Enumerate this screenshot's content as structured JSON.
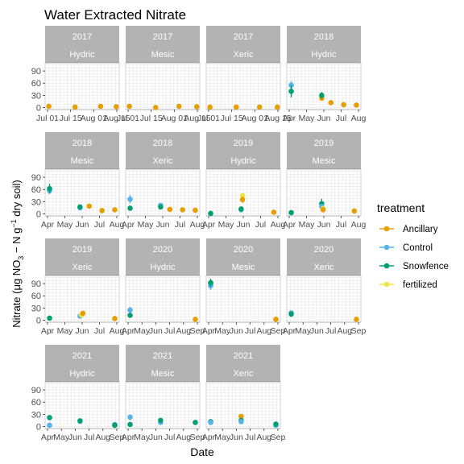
{
  "chart_data": {
    "type": "scatter",
    "title": "Water Extracted Nitrate",
    "xlabel": "Date",
    "ylabel_parts": [
      "Nitrate (μg NO",
      "3",
      " − N g",
      "−1",
      " dry soil)"
    ],
    "ylim": [
      -5,
      110
    ],
    "yticks": [
      "0",
      "30",
      "60",
      "90"
    ],
    "grid": true,
    "legend": {
      "title": "treatment",
      "position": "right",
      "entries": [
        {
          "label": "Ancillary",
          "color": "#E69F00"
        },
        {
          "label": "Control",
          "color": "#56B4E9"
        },
        {
          "label": "Snowfence",
          "color": "#009E73"
        },
        {
          "label": "fertilized",
          "color": "#F0E442"
        }
      ]
    },
    "panels": [
      {
        "year": "2017",
        "site": "Hydric",
        "xticks": [
          "Jul 01",
          "Jul 15",
          "Aug 01",
          "Aug 15"
        ],
        "points": [
          {
            "t": "Ancillary",
            "x": 0.03,
            "y": 3
          },
          {
            "t": "Ancillary",
            "x": 0.4,
            "y": 1
          },
          {
            "t": "Ancillary",
            "x": 0.76,
            "y": 3
          },
          {
            "t": "Ancillary",
            "x": 0.98,
            "y": 2
          }
        ]
      },
      {
        "year": "2017",
        "site": "Mesic",
        "xticks": [
          "Jul 01",
          "Jul 15",
          "Aug 01",
          "Aug 15"
        ],
        "points": [
          {
            "t": "Ancillary",
            "x": 0.03,
            "y": 3
          },
          {
            "t": "Ancillary",
            "x": 0.4,
            "y": 0
          },
          {
            "t": "Ancillary",
            "x": 0.73,
            "y": 3
          },
          {
            "t": "Ancillary",
            "x": 0.98,
            "y": 2
          }
        ]
      },
      {
        "year": "2017",
        "site": "Xeric",
        "xticks": [
          "Jul 01",
          "Jul 15",
          "Aug 01",
          "Aug 15"
        ],
        "points": [
          {
            "t": "Ancillary",
            "x": 0.03,
            "y": 1
          },
          {
            "t": "Ancillary",
            "x": 0.4,
            "y": 1
          },
          {
            "t": "Ancillary",
            "x": 0.73,
            "y": 1
          },
          {
            "t": "Ancillary",
            "x": 0.98,
            "y": 1
          }
        ]
      },
      {
        "year": "2018",
        "site": "Hydric",
        "xticks": [
          "Apr",
          "May",
          "Jun",
          "Jul",
          "Aug"
        ],
        "points": [
          {
            "t": "Control",
            "x": 0.04,
            "y": 55,
            "e": 10
          },
          {
            "t": "Snowfence",
            "x": 0.04,
            "y": 40,
            "e": 15
          },
          {
            "t": "Ancillary",
            "x": 0.47,
            "y": 23,
            "e": 6
          },
          {
            "t": "Snowfence",
            "x": 0.47,
            "y": 30,
            "e": 8
          },
          {
            "t": "Ancillary",
            "x": 0.6,
            "y": 12
          },
          {
            "t": "Ancillary",
            "x": 0.78,
            "y": 7
          },
          {
            "t": "Ancillary",
            "x": 0.96,
            "y": 6
          }
        ]
      },
      {
        "year": "2018",
        "site": "Mesic",
        "xticks": [
          "Apr",
          "May",
          "Jun",
          "Jul",
          "Aug"
        ],
        "points": [
          {
            "t": "Control",
            "x": 0.04,
            "y": 57,
            "e": 8
          },
          {
            "t": "Snowfence",
            "x": 0.04,
            "y": 62,
            "e": 12
          },
          {
            "t": "Control",
            "x": 0.47,
            "y": 15
          },
          {
            "t": "Snowfence",
            "x": 0.47,
            "y": 17
          },
          {
            "t": "Ancillary",
            "x": 0.6,
            "y": 19
          },
          {
            "t": "Ancillary",
            "x": 0.78,
            "y": 8
          },
          {
            "t": "Ancillary",
            "x": 0.96,
            "y": 10
          }
        ]
      },
      {
        "year": "2018",
        "site": "Xeric",
        "xticks": [
          "Apr",
          "May",
          "Jun",
          "Jul",
          "Aug"
        ],
        "points": [
          {
            "t": "Control",
            "x": 0.04,
            "y": 36,
            "e": 10
          },
          {
            "t": "Snowfence",
            "x": 0.04,
            "y": 14,
            "e": 5
          },
          {
            "t": "Control",
            "x": 0.47,
            "y": 21
          },
          {
            "t": "Snowfence",
            "x": 0.47,
            "y": 17
          },
          {
            "t": "Ancillary",
            "x": 0.6,
            "y": 11
          },
          {
            "t": "Ancillary",
            "x": 0.78,
            "y": 10
          },
          {
            "t": "Ancillary",
            "x": 0.96,
            "y": 9
          }
        ]
      },
      {
        "year": "2019",
        "site": "Hydric",
        "xticks": [
          "Apr",
          "May",
          "Jun",
          "Jul",
          "Aug"
        ],
        "points": [
          {
            "t": "Snowfence",
            "x": 0.04,
            "y": 1
          },
          {
            "t": "Control",
            "x": 0.47,
            "y": 10
          },
          {
            "t": "Snowfence",
            "x": 0.47,
            "y": 12
          },
          {
            "t": "fertilized",
            "x": 0.49,
            "y": 45
          },
          {
            "t": "Ancillary",
            "x": 0.49,
            "y": 35,
            "e": 8
          },
          {
            "t": "Ancillary",
            "x": 0.93,
            "y": 4
          }
        ]
      },
      {
        "year": "2019",
        "site": "Mesic",
        "xticks": [
          "Apr",
          "May",
          "Jun",
          "Jul",
          "Aug"
        ],
        "points": [
          {
            "t": "Snowfence",
            "x": 0.04,
            "y": 3
          },
          {
            "t": "Snowfence",
            "x": 0.47,
            "y": 25,
            "e": 12
          },
          {
            "t": "Control",
            "x": 0.47,
            "y": 18
          },
          {
            "t": "fertilized",
            "x": 0.49,
            "y": 13
          },
          {
            "t": "Ancillary",
            "x": 0.49,
            "y": 10
          },
          {
            "t": "Ancillary",
            "x": 0.93,
            "y": 7
          }
        ]
      },
      {
        "year": "2019",
        "site": "Xeric",
        "xticks": [
          "Apr",
          "May",
          "Jun",
          "Jul",
          "Aug"
        ],
        "points": [
          {
            "t": "Snowfence",
            "x": 0.04,
            "y": 5
          },
          {
            "t": "Control",
            "x": 0.47,
            "y": 10
          },
          {
            "t": "fertilized",
            "x": 0.49,
            "y": 13
          },
          {
            "t": "Ancillary",
            "x": 0.51,
            "y": 17
          },
          {
            "t": "Ancillary",
            "x": 0.96,
            "y": 4
          }
        ]
      },
      {
        "year": "2020",
        "site": "Hydric",
        "xticks": [
          "Apr",
          "May",
          "Jun",
          "Jul",
          "Aug",
          "Sep"
        ],
        "points": [
          {
            "t": "Control",
            "x": 0.04,
            "y": 25,
            "e": 8
          },
          {
            "t": "Snowfence",
            "x": 0.04,
            "y": 12
          },
          {
            "t": "Ancillary",
            "x": 0.96,
            "y": 2
          }
        ]
      },
      {
        "year": "2020",
        "site": "Mesic",
        "xticks": [
          "Apr",
          "May",
          "Jun",
          "Jul",
          "Aug",
          "Sep"
        ],
        "points": [
          {
            "t": "Control",
            "x": 0.04,
            "y": 85,
            "e": 10
          },
          {
            "t": "Snowfence",
            "x": 0.04,
            "y": 92,
            "e": 10
          },
          {
            "t": "Ancillary",
            "x": 0.96,
            "y": 2
          }
        ]
      },
      {
        "year": "2020",
        "site": "Xeric",
        "xticks": [
          "Apr",
          "May",
          "Jun",
          "Jul",
          "Aug",
          "Sep"
        ],
        "points": [
          {
            "t": "Control",
            "x": 0.04,
            "y": 18
          },
          {
            "t": "Snowfence",
            "x": 0.04,
            "y": 15
          },
          {
            "t": "Ancillary",
            "x": 0.96,
            "y": 2
          }
        ]
      },
      {
        "year": "2021",
        "site": "Hydric",
        "xticks": [
          "Apr",
          "May",
          "Jun",
          "Jul",
          "Aug",
          "Sep"
        ],
        "points": [
          {
            "t": "Snowfence",
            "x": 0.04,
            "y": 22
          },
          {
            "t": "Control",
            "x": 0.04,
            "y": 3
          },
          {
            "t": "Control",
            "x": 0.47,
            "y": 13
          },
          {
            "t": "Snowfence",
            "x": 0.47,
            "y": 14
          },
          {
            "t": "Control",
            "x": 0.96,
            "y": 5
          },
          {
            "t": "Snowfence",
            "x": 0.96,
            "y": 3
          }
        ]
      },
      {
        "year": "2021",
        "site": "Mesic",
        "xticks": [
          "Apr",
          "May",
          "Jun",
          "Jul",
          "Aug",
          "Sep"
        ],
        "points": [
          {
            "t": "Control",
            "x": 0.04,
            "y": 23,
            "e": 7
          },
          {
            "t": "Snowfence",
            "x": 0.04,
            "y": 5
          },
          {
            "t": "Control",
            "x": 0.47,
            "y": 10
          },
          {
            "t": "Snowfence",
            "x": 0.47,
            "y": 15
          },
          {
            "t": "Snowfence",
            "x": 0.96,
            "y": 10
          }
        ]
      },
      {
        "year": "2021",
        "site": "Xeric",
        "xticks": [
          "Apr",
          "May",
          "Jun",
          "Jul",
          "Aug",
          "Sep"
        ],
        "points": [
          {
            "t": "Snowfence",
            "x": 0.04,
            "y": 12
          },
          {
            "t": "Control",
            "x": 0.04,
            "y": 10
          },
          {
            "t": "Ancillary",
            "x": 0.47,
            "y": 25
          },
          {
            "t": "Snowfence",
            "x": 0.47,
            "y": 15
          },
          {
            "t": "Control",
            "x": 0.47,
            "y": 12
          },
          {
            "t": "Control",
            "x": 0.96,
            "y": 3
          },
          {
            "t": "Snowfence",
            "x": 0.96,
            "y": 6
          }
        ]
      }
    ]
  }
}
